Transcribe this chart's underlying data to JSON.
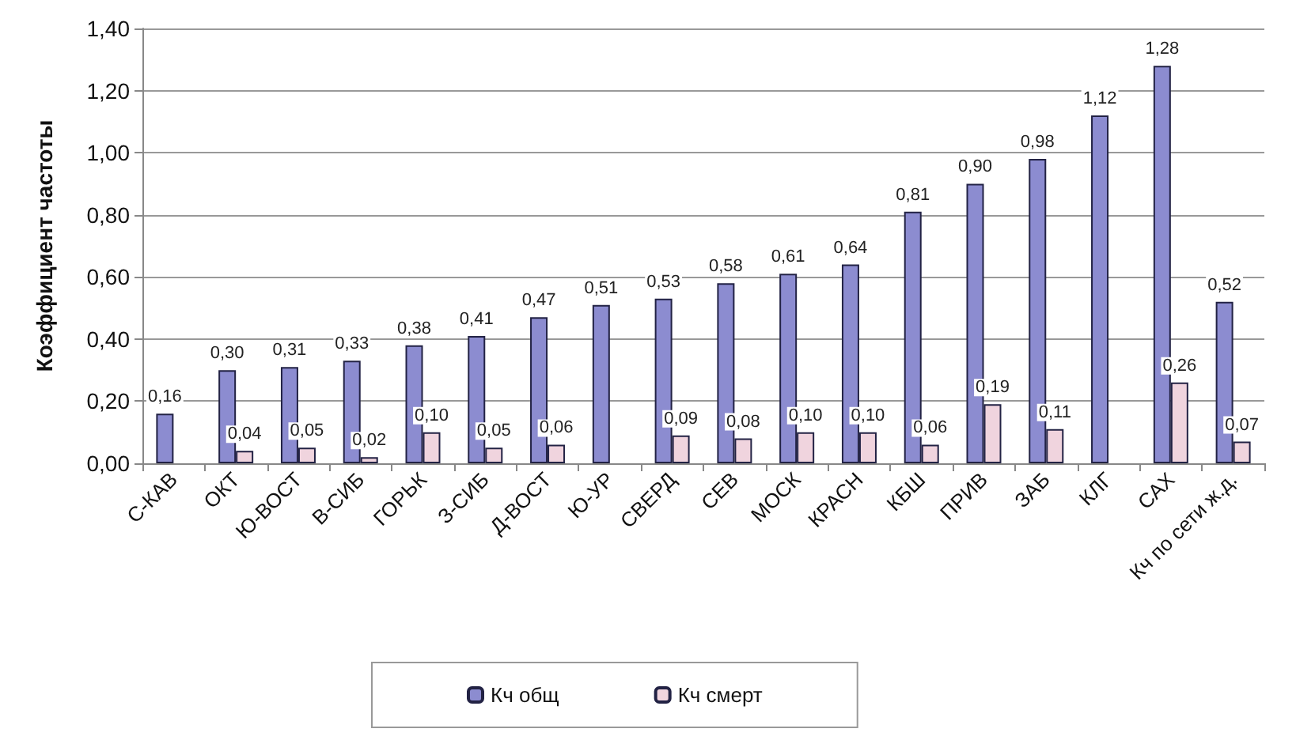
{
  "chart_data": {
    "type": "bar",
    "ylabel": "Коэффициент частоты",
    "categories": [
      "С-КАВ",
      "ОКТ",
      "Ю-ВОСТ",
      "В-СИБ",
      "ГОРЬК",
      "З-СИБ",
      "Д-ВОСТ",
      "Ю-УР",
      "СВЕРД",
      "СЕВ",
      "МОСК",
      "КРАСН",
      "КБШ",
      "ПРИВ",
      "ЗАБ",
      "КЛГ",
      "САХ",
      "Кч по сети ж.д."
    ],
    "series": [
      {
        "name": "Кч общ",
        "color": "#8c8cd0",
        "values": [
          0.16,
          0.3,
          0.31,
          0.33,
          0.38,
          0.41,
          0.47,
          0.51,
          0.53,
          0.58,
          0.61,
          0.64,
          0.81,
          0.9,
          0.98,
          1.12,
          1.28,
          0.52
        ],
        "value_labels": [
          "0,16",
          "0,30",
          "0,31",
          "0,33",
          "0,38",
          "0,41",
          "0,47",
          "0,51",
          "0,53",
          "0,58",
          "0,61",
          "0,64",
          "0,81",
          "0,90",
          "0,98",
          "1,12",
          "1,28",
          "0,52"
        ]
      },
      {
        "name": "Кч смерт",
        "color": "#f0d4de",
        "values": [
          null,
          0.04,
          0.05,
          0.02,
          0.1,
          0.05,
          0.06,
          null,
          0.09,
          0.08,
          0.1,
          0.1,
          0.06,
          0.19,
          0.11,
          null,
          0.26,
          0.07
        ],
        "value_labels": [
          null,
          "0,04",
          "0,05",
          "0,02",
          "0,10",
          "0,05",
          "0,06",
          null,
          "0,09",
          "0,08",
          "0,10",
          "0,10",
          "0,06",
          "0,19",
          "0,11",
          null,
          "0,26",
          "0,07"
        ]
      }
    ],
    "ylim": [
      0,
      1.4
    ],
    "yticks": [
      {
        "value": 0,
        "label": "0,00"
      },
      {
        "value": 0.2,
        "label": "0,20"
      },
      {
        "value": 0.4,
        "label": "0,40"
      },
      {
        "value": 0.6,
        "label": "0,60"
      },
      {
        "value": 0.8,
        "label": "0,80"
      },
      {
        "value": 1.0,
        "label": "1,00"
      },
      {
        "value": 1.2,
        "label": "1,20"
      },
      {
        "value": 1.4,
        "label": "1,40"
      }
    ],
    "grid": "y",
    "legend": "bottom"
  }
}
